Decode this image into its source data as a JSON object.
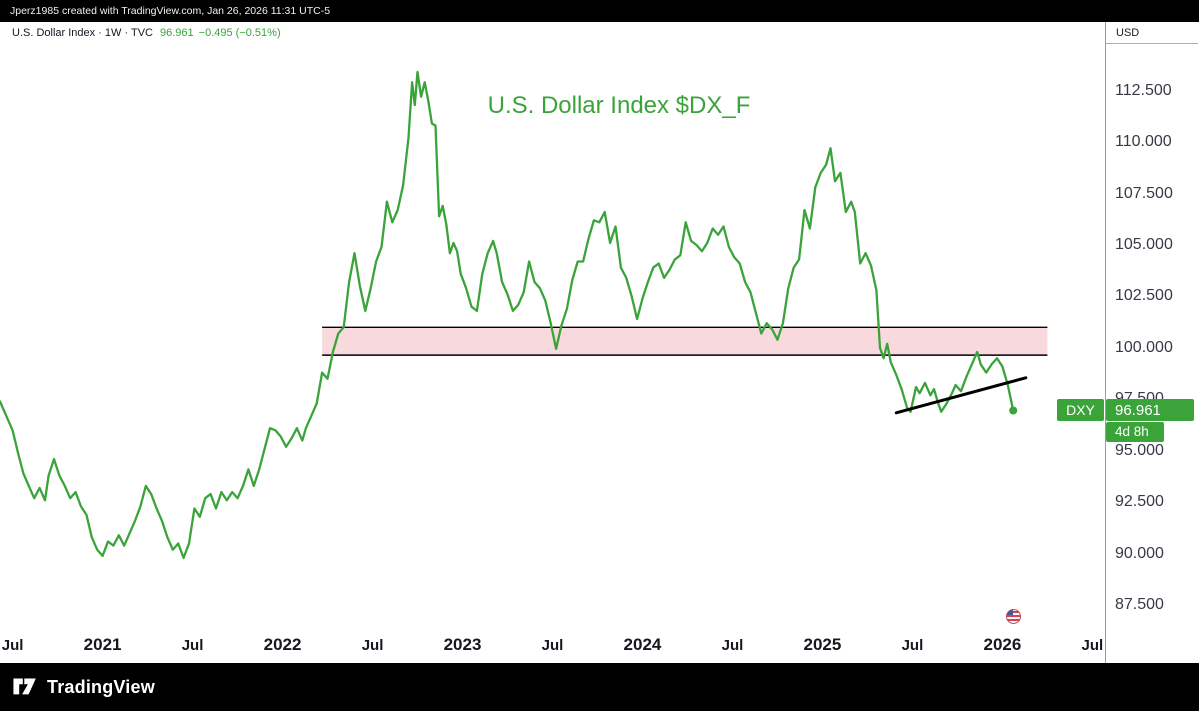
{
  "top_bar": {
    "attribution": "Jperz1985 created with TradingView.com, Jan 26, 2026 11:31 UTC-5"
  },
  "legend": {
    "symbol_info": "U.S. Dollar Index · 1W · TVC",
    "last_price": "96.961",
    "change": "−0.495 (−0.51%)"
  },
  "axis": {
    "currency_label": "USD"
  },
  "price_label": {
    "symbol": "DXY",
    "price": "96.961",
    "countdown": "4d 8h"
  },
  "footer": {
    "brand": "TradingView"
  },
  "colors": {
    "line_green": "#3aa33a",
    "zone_pink": "#f6d0d6",
    "zone_border": "#000000",
    "trendline_black": "#000000"
  },
  "chart_data": {
    "type": "line",
    "title": "U.S. Dollar Index $DX_F",
    "symbol": "U.S. Dollar Index",
    "timeframe": "1W",
    "exchange": "TVC",
    "last_price": 96.961,
    "change": -0.495,
    "change_pct": "-0.51%",
    "countdown": "4d 8h",
    "x_unit": "decimal_year",
    "x_range": [
      2020.43,
      2026.57
    ],
    "y_range": [
      86.3,
      115.83
    ],
    "y_ticks": [
      112.5,
      110.0,
      107.5,
      105.0,
      102.5,
      100.0,
      97.5,
      95.0,
      92.5,
      90.0,
      87.5
    ],
    "x_ticks": [
      {
        "v": 2020.5,
        "label": "Jul",
        "major": false
      },
      {
        "v": 2021.0,
        "label": "2021",
        "major": true
      },
      {
        "v": 2021.5,
        "label": "Jul",
        "major": false
      },
      {
        "v": 2022.0,
        "label": "2022",
        "major": true
      },
      {
        "v": 2022.5,
        "label": "Jul",
        "major": false
      },
      {
        "v": 2023.0,
        "label": "2023",
        "major": true
      },
      {
        "v": 2023.5,
        "label": "Jul",
        "major": false
      },
      {
        "v": 2024.0,
        "label": "2024",
        "major": true
      },
      {
        "v": 2024.5,
        "label": "Jul",
        "major": false
      },
      {
        "v": 2025.0,
        "label": "2025",
        "major": true
      },
      {
        "v": 2025.5,
        "label": "Jul",
        "major": false
      },
      {
        "v": 2026.0,
        "label": "2026",
        "major": true
      },
      {
        "v": 2026.5,
        "label": "Jul",
        "major": false
      }
    ],
    "resistance_zone": {
      "x1": 2022.22,
      "x2": 2026.25,
      "y_top": 101.0,
      "y_bottom": 99.65,
      "fill": "#f6d0d6",
      "opacity": 0.8,
      "border_color": "#000000"
    },
    "trendline": {
      "x1": 2025.41,
      "y1": 96.85,
      "x2": 2026.13,
      "y2": 98.55,
      "color": "#000000",
      "width": 3
    },
    "series": [
      {
        "name": "DXY",
        "color": "#3aa33a",
        "points": [
          [
            2020.43,
            97.4
          ],
          [
            2020.47,
            96.6
          ],
          [
            2020.5,
            96.0
          ],
          [
            2020.53,
            94.9
          ],
          [
            2020.56,
            93.9
          ],
          [
            2020.59,
            93.3
          ],
          [
            2020.62,
            92.7
          ],
          [
            2020.65,
            93.2
          ],
          [
            2020.68,
            92.6
          ],
          [
            2020.7,
            93.8
          ],
          [
            2020.73,
            94.6
          ],
          [
            2020.76,
            93.8
          ],
          [
            2020.79,
            93.3
          ],
          [
            2020.82,
            92.7
          ],
          [
            2020.85,
            93.0
          ],
          [
            2020.88,
            92.3
          ],
          [
            2020.91,
            91.9
          ],
          [
            2020.94,
            90.8
          ],
          [
            2020.97,
            90.2
          ],
          [
            2021.0,
            89.9
          ],
          [
            2021.03,
            90.6
          ],
          [
            2021.06,
            90.4
          ],
          [
            2021.09,
            90.9
          ],
          [
            2021.12,
            90.4
          ],
          [
            2021.15,
            91.0
          ],
          [
            2021.18,
            91.6
          ],
          [
            2021.21,
            92.3
          ],
          [
            2021.24,
            93.3
          ],
          [
            2021.27,
            92.9
          ],
          [
            2021.3,
            92.2
          ],
          [
            2021.33,
            91.6
          ],
          [
            2021.36,
            90.8
          ],
          [
            2021.39,
            90.2
          ],
          [
            2021.42,
            90.5
          ],
          [
            2021.45,
            89.8
          ],
          [
            2021.48,
            90.5
          ],
          [
            2021.51,
            92.2
          ],
          [
            2021.54,
            91.8
          ],
          [
            2021.57,
            92.7
          ],
          [
            2021.6,
            92.9
          ],
          [
            2021.63,
            92.2
          ],
          [
            2021.66,
            93.0
          ],
          [
            2021.69,
            92.6
          ],
          [
            2021.72,
            93.0
          ],
          [
            2021.75,
            92.7
          ],
          [
            2021.78,
            93.3
          ],
          [
            2021.81,
            94.1
          ],
          [
            2021.84,
            93.3
          ],
          [
            2021.87,
            94.1
          ],
          [
            2021.9,
            95.1
          ],
          [
            2021.93,
            96.1
          ],
          [
            2021.96,
            96.0
          ],
          [
            2021.99,
            95.7
          ],
          [
            2022.02,
            95.2
          ],
          [
            2022.05,
            95.6
          ],
          [
            2022.08,
            96.1
          ],
          [
            2022.11,
            95.5
          ],
          [
            2022.13,
            96.1
          ],
          [
            2022.16,
            96.7
          ],
          [
            2022.19,
            97.3
          ],
          [
            2022.22,
            98.8
          ],
          [
            2022.25,
            98.5
          ],
          [
            2022.28,
            99.8
          ],
          [
            2022.31,
            100.7
          ],
          [
            2022.34,
            101.0
          ],
          [
            2022.37,
            103.2
          ],
          [
            2022.4,
            104.6
          ],
          [
            2022.43,
            103.0
          ],
          [
            2022.46,
            101.8
          ],
          [
            2022.49,
            102.9
          ],
          [
            2022.52,
            104.2
          ],
          [
            2022.55,
            104.9
          ],
          [
            2022.58,
            107.1
          ],
          [
            2022.61,
            106.1
          ],
          [
            2022.64,
            106.7
          ],
          [
            2022.67,
            107.9
          ],
          [
            2022.7,
            110.2
          ],
          [
            2022.72,
            112.9
          ],
          [
            2022.735,
            111.8
          ],
          [
            2022.75,
            113.4
          ],
          [
            2022.77,
            112.2
          ],
          [
            2022.79,
            112.9
          ],
          [
            2022.81,
            112.0
          ],
          [
            2022.83,
            110.9
          ],
          [
            2022.85,
            110.8
          ],
          [
            2022.87,
            106.4
          ],
          [
            2022.89,
            106.9
          ],
          [
            2022.91,
            106.0
          ],
          [
            2022.93,
            104.6
          ],
          [
            2022.95,
            105.1
          ],
          [
            2022.97,
            104.7
          ],
          [
            2022.99,
            103.6
          ],
          [
            2023.02,
            102.9
          ],
          [
            2023.05,
            102.0
          ],
          [
            2023.08,
            101.8
          ],
          [
            2023.11,
            103.6
          ],
          [
            2023.14,
            104.6
          ],
          [
            2023.17,
            105.2
          ],
          [
            2023.19,
            104.6
          ],
          [
            2023.22,
            103.2
          ],
          [
            2023.25,
            102.6
          ],
          [
            2023.28,
            101.8
          ],
          [
            2023.31,
            102.1
          ],
          [
            2023.34,
            102.7
          ],
          [
            2023.37,
            104.2
          ],
          [
            2023.4,
            103.2
          ],
          [
            2023.43,
            102.9
          ],
          [
            2023.46,
            102.3
          ],
          [
            2023.49,
            101.2
          ],
          [
            2023.52,
            99.96
          ],
          [
            2023.55,
            101.1
          ],
          [
            2023.58,
            101.9
          ],
          [
            2023.61,
            103.3
          ],
          [
            2023.64,
            104.2
          ],
          [
            2023.67,
            104.2
          ],
          [
            2023.7,
            105.3
          ],
          [
            2023.73,
            106.2
          ],
          [
            2023.76,
            106.1
          ],
          [
            2023.79,
            106.6
          ],
          [
            2023.82,
            105.1
          ],
          [
            2023.85,
            105.9
          ],
          [
            2023.88,
            103.9
          ],
          [
            2023.91,
            103.4
          ],
          [
            2023.94,
            102.5
          ],
          [
            2023.97,
            101.4
          ],
          [
            2024.0,
            102.4
          ],
          [
            2024.03,
            103.2
          ],
          [
            2024.06,
            103.9
          ],
          [
            2024.09,
            104.1
          ],
          [
            2024.12,
            103.4
          ],
          [
            2024.15,
            103.8
          ],
          [
            2024.18,
            104.3
          ],
          [
            2024.21,
            104.5
          ],
          [
            2024.24,
            106.1
          ],
          [
            2024.27,
            105.2
          ],
          [
            2024.3,
            105.0
          ],
          [
            2024.33,
            104.7
          ],
          [
            2024.36,
            105.1
          ],
          [
            2024.39,
            105.8
          ],
          [
            2024.42,
            105.5
          ],
          [
            2024.45,
            105.9
          ],
          [
            2024.48,
            104.9
          ],
          [
            2024.51,
            104.4
          ],
          [
            2024.54,
            104.1
          ],
          [
            2024.57,
            103.2
          ],
          [
            2024.6,
            102.7
          ],
          [
            2024.63,
            101.7
          ],
          [
            2024.66,
            100.7
          ],
          [
            2024.69,
            101.2
          ],
          [
            2024.72,
            100.9
          ],
          [
            2024.75,
            100.4
          ],
          [
            2024.78,
            101.2
          ],
          [
            2024.81,
            102.9
          ],
          [
            2024.84,
            103.9
          ],
          [
            2024.87,
            104.3
          ],
          [
            2024.9,
            106.7
          ],
          [
            2024.93,
            105.8
          ],
          [
            2024.96,
            107.8
          ],
          [
            2024.99,
            108.5
          ],
          [
            2025.02,
            108.9
          ],
          [
            2025.045,
            109.7
          ],
          [
            2025.07,
            108.1
          ],
          [
            2025.1,
            108.5
          ],
          [
            2025.13,
            106.6
          ],
          [
            2025.16,
            107.1
          ],
          [
            2025.18,
            106.6
          ],
          [
            2025.21,
            104.1
          ],
          [
            2025.24,
            104.6
          ],
          [
            2025.27,
            104.0
          ],
          [
            2025.3,
            102.8
          ],
          [
            2025.32,
            100.0
          ],
          [
            2025.34,
            99.5
          ],
          [
            2025.36,
            100.2
          ],
          [
            2025.38,
            99.3
          ],
          [
            2025.41,
            98.7
          ],
          [
            2025.44,
            98.0
          ],
          [
            2025.47,
            97.1
          ],
          [
            2025.49,
            96.9
          ],
          [
            2025.52,
            98.1
          ],
          [
            2025.54,
            97.8
          ],
          [
            2025.57,
            98.3
          ],
          [
            2025.6,
            97.7
          ],
          [
            2025.62,
            98.0
          ],
          [
            2025.64,
            97.4
          ],
          [
            2025.66,
            96.9
          ],
          [
            2025.69,
            97.3
          ],
          [
            2025.72,
            97.8
          ],
          [
            2025.74,
            98.2
          ],
          [
            2025.77,
            97.9
          ],
          [
            2025.8,
            98.6
          ],
          [
            2025.83,
            99.2
          ],
          [
            2025.86,
            99.8
          ],
          [
            2025.88,
            99.2
          ],
          [
            2025.91,
            98.8
          ],
          [
            2025.94,
            99.2
          ],
          [
            2025.97,
            99.5
          ],
          [
            2026.0,
            99.1
          ],
          [
            2026.03,
            98.2
          ],
          [
            2026.06,
            96.961
          ]
        ]
      }
    ]
  }
}
